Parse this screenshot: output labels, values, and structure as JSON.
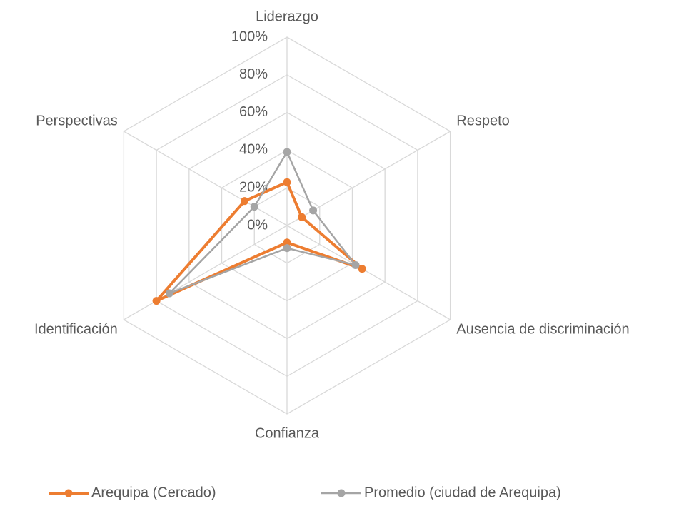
{
  "chart_data": {
    "type": "radar",
    "categories": [
      "Liderazgo",
      "Respeto",
      "Ausencia de discriminación",
      "Confianza",
      "Identificación",
      "Perspectivas"
    ],
    "series": [
      {
        "name": "Arequipa (Cercado)",
        "color": "#ED7D31",
        "values": [
          23,
          9,
          46,
          9,
          80,
          26
        ]
      },
      {
        "name": "Promedio (ciudad de Arequipa)",
        "color": "#A5A5A5",
        "values": [
          39,
          16,
          42,
          12,
          72,
          20
        ]
      }
    ],
    "rlim": [
      0,
      100
    ],
    "rticks": [
      {
        "value": 0,
        "label": "0%"
      },
      {
        "value": 20,
        "label": "20%"
      },
      {
        "value": 40,
        "label": "40%"
      },
      {
        "value": 60,
        "label": "60%"
      },
      {
        "value": 80,
        "label": "80%"
      },
      {
        "value": 100,
        "label": "100%"
      }
    ],
    "grid": true,
    "legend": "bottom"
  }
}
